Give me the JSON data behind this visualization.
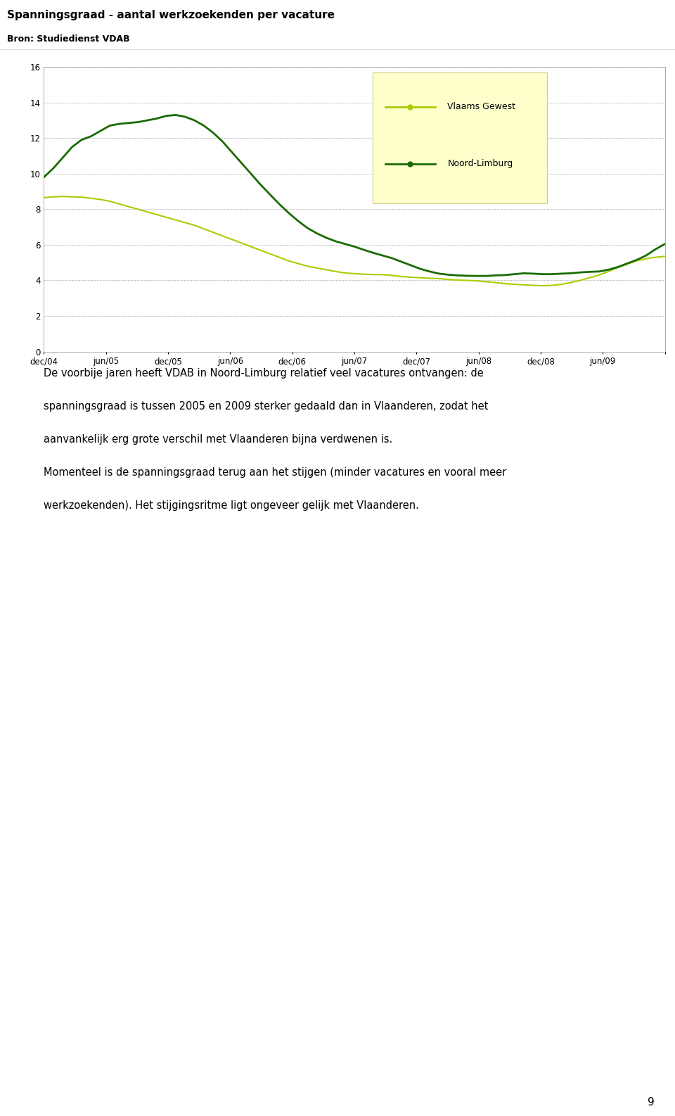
{
  "title": "Spanningsgraad - aantal werkzoekenden per vacature",
  "subtitle": "Bron: Studiedienst VDAB",
  "xlabels": [
    "dec/04",
    "jun/05",
    "dec/05",
    "jun/06",
    "dec/06",
    "jun/07",
    "dec/07",
    "jun/08",
    "dec/08",
    "jun/09"
  ],
  "ylim": [
    0,
    16
  ],
  "yticks": [
    0,
    2,
    4,
    6,
    8,
    10,
    12,
    14,
    16
  ],
  "legend_labels": [
    "Vlaams Gewest",
    "Noord-Limburg"
  ],
  "color_vlaams": "#aacc00",
  "color_noord": "#1a6b00",
  "legend_bg": "#ffffcc",
  "header_bg": "#b8b8b8",
  "grid_color": "#aaaaaa",
  "text_body_line1": "De voorbije jaren heeft VDAB in Noord-Limburg relatief veel vacatures ontvangen: de",
  "text_body_line2": "spanningsgraad is tussen 2005 en 2009 sterker gedaald dan in Vlaanderen, zodat het",
  "text_body_line3": "aanvankelijk erg grote verschil met Vlaanderen bijna verdwenen is.",
  "text_body_line4": "Momenteel is de spanningsgraad terug aan het stijgen (minder vacatures en vooral meer",
  "text_body_line5": "werkzoekenden). Het stijgingsritme ligt ongeveer gelijk met Vlaanderen.",
  "page_number": "9",
  "vlaams_y": [
    8.65,
    8.7,
    8.72,
    8.7,
    8.68,
    8.62,
    8.55,
    8.45,
    8.3,
    8.15,
    8.0,
    7.85,
    7.7,
    7.55,
    7.4,
    7.25,
    7.1,
    6.9,
    6.7,
    6.5,
    6.3,
    6.1,
    5.9,
    5.7,
    5.5,
    5.3,
    5.1,
    4.95,
    4.8,
    4.7,
    4.6,
    4.5,
    4.42,
    4.38,
    4.35,
    4.33,
    4.32,
    4.28,
    4.22,
    4.18,
    4.15,
    4.12,
    4.1,
    4.05,
    4.02,
    4.0,
    3.98,
    3.92,
    3.88,
    3.82,
    3.78,
    3.75,
    3.72,
    3.7,
    3.72,
    3.78,
    3.88,
    4.0,
    4.15,
    4.3,
    4.5,
    4.72,
    4.92,
    5.1,
    5.22,
    5.3,
    5.35
  ],
  "noord_y": [
    9.8,
    10.3,
    10.9,
    11.5,
    11.9,
    12.1,
    12.4,
    12.7,
    12.8,
    12.85,
    12.9,
    13.0,
    13.1,
    13.25,
    13.3,
    13.2,
    13.0,
    12.7,
    12.3,
    11.8,
    11.2,
    10.6,
    10.0,
    9.4,
    8.85,
    8.3,
    7.8,
    7.35,
    6.95,
    6.65,
    6.4,
    6.2,
    6.05,
    5.9,
    5.72,
    5.55,
    5.4,
    5.25,
    5.05,
    4.85,
    4.65,
    4.5,
    4.38,
    4.32,
    4.28,
    4.26,
    4.25,
    4.25,
    4.28,
    4.3,
    4.35,
    4.4,
    4.38,
    4.35,
    4.35,
    4.38,
    4.4,
    4.45,
    4.48,
    4.5,
    4.6,
    4.75,
    4.95,
    5.15,
    5.4,
    5.75,
    6.05
  ]
}
